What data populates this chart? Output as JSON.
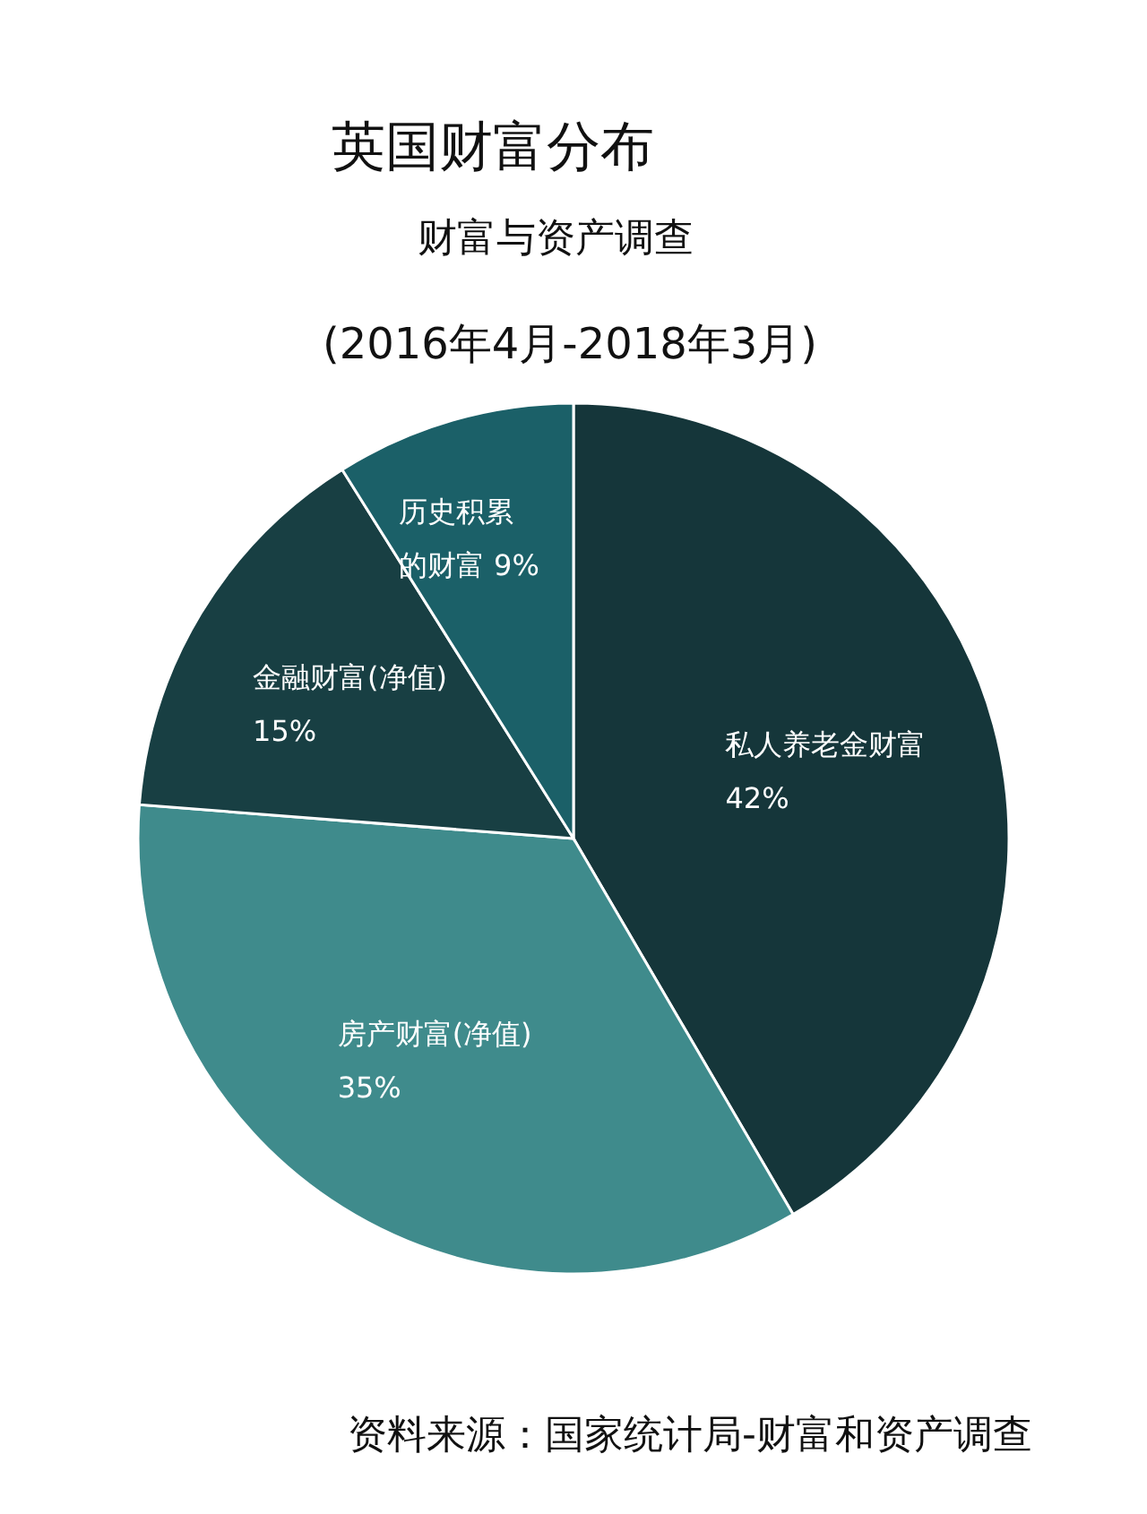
{
  "chart_data": {
    "type": "pie",
    "title": "英国财富分布",
    "subtitle": "财富与资产调查\n(2016年4月-2018年3月)",
    "categories": [
      "私人养老金财富",
      "房产财富(净值)",
      "金融财富(净值)",
      "历史积累的财富"
    ],
    "values": [
      42,
      35,
      15,
      9
    ],
    "colors": [
      "#15363a",
      "#3f8b8c",
      "#183f43",
      "#1b6068"
    ],
    "value_labels": [
      "42%",
      "35%",
      "15%",
      "9%"
    ],
    "annotations": [
      "资料来源：国家统计局-财富和资产调查"
    ]
  }
}
